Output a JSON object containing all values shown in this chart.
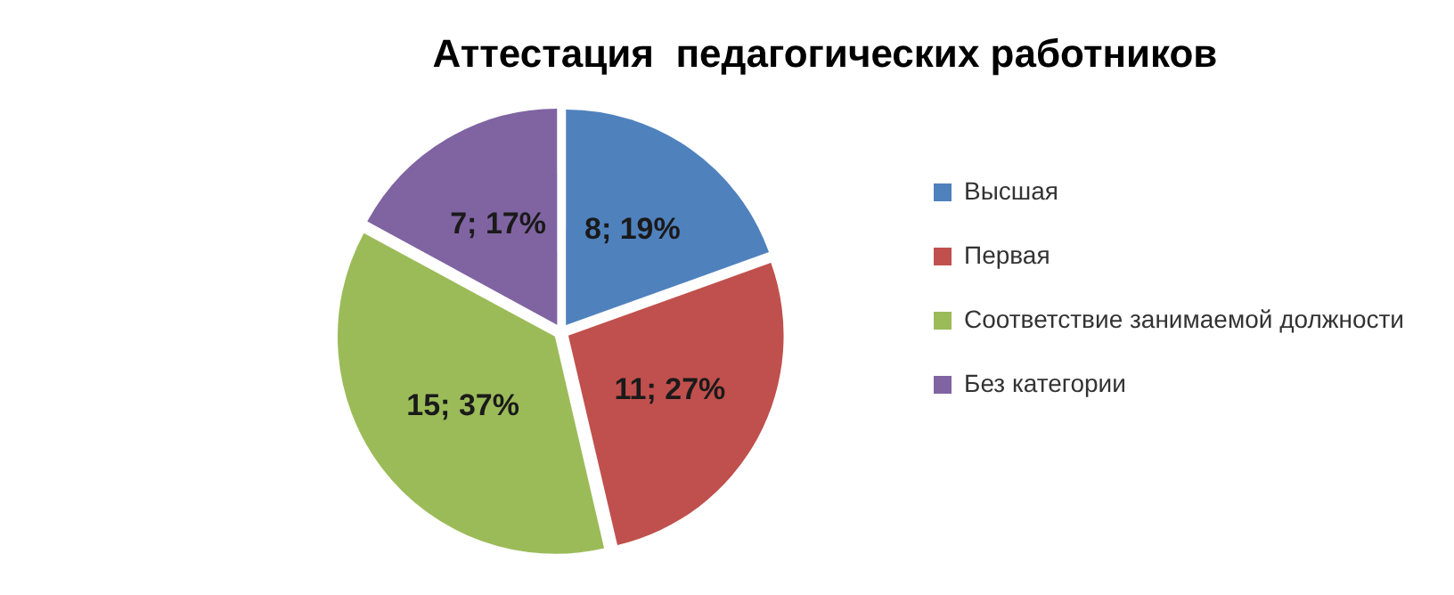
{
  "chart_data": {
    "type": "pie",
    "title": "Аттестация  педагогических работников",
    "categories": [
      "Высшая",
      "Первая",
      "Соответствие занимаемой должности",
      "Без категории"
    ],
    "values": [
      8,
      11,
      15,
      7
    ],
    "colors": [
      "#4f81bd",
      "#c0504d",
      "#9bbb59",
      "#8064a2"
    ],
    "value_labels": [
      "8; 19%",
      "11; 27%",
      "15; 37%",
      "7; 17%"
    ],
    "legend": "right"
  }
}
